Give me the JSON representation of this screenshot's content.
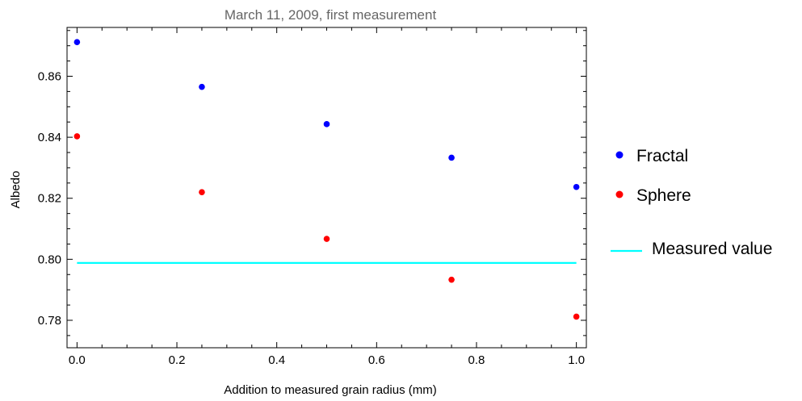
{
  "chart_data": {
    "type": "scatter",
    "title": "March 11, 2009, first measurement",
    "xlabel": "Addition to measured grain radius (mm)",
    "ylabel": "Albedo",
    "xlim": [
      -0.02,
      1.02
    ],
    "ylim": [
      0.771,
      0.876
    ],
    "x_ticks": [
      0.0,
      0.2,
      0.4,
      0.6,
      0.8,
      1.0
    ],
    "x_tick_labels": [
      "0.0",
      "0.2",
      "0.4",
      "0.6",
      "0.8",
      "1.0"
    ],
    "y_ticks": [
      0.78,
      0.8,
      0.82,
      0.84,
      0.86
    ],
    "y_tick_labels": [
      "0.78",
      "0.80",
      "0.82",
      "0.84",
      "0.86"
    ],
    "grid": false,
    "legend_position": "right",
    "series": [
      {
        "name": "Fractal",
        "color": "#0000ff",
        "x": [
          0.0,
          0.25,
          0.5,
          0.75,
          1.0
        ],
        "y": [
          0.8712,
          0.8565,
          0.8443,
          0.8333,
          0.8237
        ]
      },
      {
        "name": "Sphere",
        "color": "#ff0000",
        "x": [
          0.0,
          0.25,
          0.5,
          0.75,
          1.0
        ],
        "y": [
          0.8403,
          0.822,
          0.8067,
          0.7933,
          0.7812
        ]
      }
    ],
    "reference_line": {
      "name": "Measured value",
      "color": "#00ffff",
      "y": 0.7988,
      "x_range": [
        0.0,
        1.0
      ]
    }
  }
}
